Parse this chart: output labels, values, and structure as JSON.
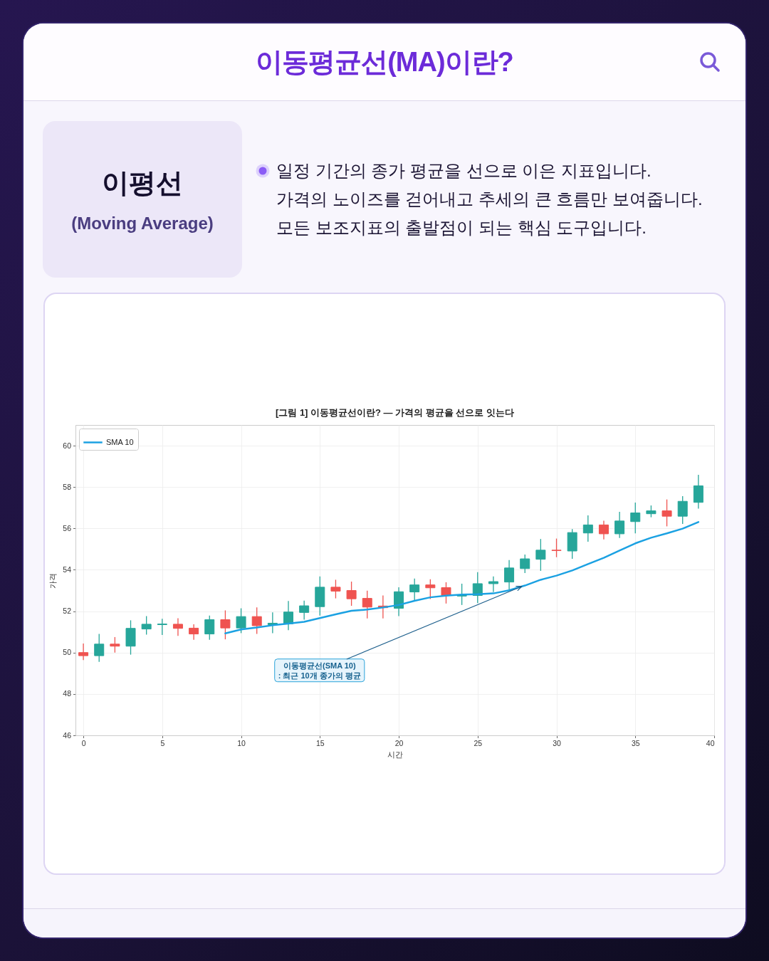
{
  "chart_data": {
    "type": "candlestick",
    "title": "이동평균선(MA)이란?",
    "subtitle": "[그림 1] 이동평균선이란? — 가격의 평균을 선으로 잇는다",
    "xlabel": "시간",
    "ylabel": "가격",
    "x": [
      0,
      1,
      2,
      3,
      4,
      5,
      6,
      7,
      8,
      9,
      10,
      11,
      12,
      13,
      14,
      15,
      16,
      17,
      18,
      19,
      20,
      21,
      22,
      23,
      24,
      25,
      26,
      27,
      28,
      29,
      30,
      31,
      32,
      33,
      34,
      35,
      36,
      37,
      38,
      39
    ],
    "ohlc": [
      [
        50.0,
        50.44,
        49.64,
        49.85
      ],
      [
        49.85,
        50.9,
        49.55,
        50.41
      ],
      [
        50.41,
        50.75,
        50.0,
        50.31
      ],
      [
        50.31,
        51.56,
        49.9,
        51.17
      ],
      [
        51.14,
        51.76,
        50.87,
        51.37
      ],
      [
        51.35,
        51.63,
        50.85,
        51.38
      ],
      [
        51.37,
        51.66,
        50.81,
        51.17
      ],
      [
        51.18,
        51.37,
        50.62,
        50.9
      ],
      [
        50.9,
        51.79,
        50.62,
        51.59
      ],
      [
        51.59,
        52.04,
        50.64,
        51.19
      ],
      [
        51.19,
        52.14,
        50.94,
        51.74
      ],
      [
        51.74,
        52.18,
        50.9,
        51.3
      ],
      [
        51.35,
        51.94,
        50.94,
        51.42
      ],
      [
        51.39,
        52.49,
        51.08,
        51.96
      ],
      [
        51.94,
        52.51,
        51.59,
        52.26
      ],
      [
        52.22,
        53.68,
        51.79,
        53.16
      ],
      [
        53.16,
        53.52,
        52.62,
        52.97
      ],
      [
        53.0,
        53.43,
        52.26,
        52.6
      ],
      [
        52.62,
        52.99,
        51.65,
        52.2
      ],
      [
        52.25,
        52.76,
        51.65,
        52.17
      ],
      [
        52.14,
        53.16,
        51.76,
        52.94
      ],
      [
        52.93,
        53.58,
        52.51,
        53.27
      ],
      [
        53.27,
        53.54,
        52.59,
        53.13
      ],
      [
        53.14,
        53.4,
        52.37,
        52.76
      ],
      [
        52.73,
        53.33,
        52.3,
        52.78
      ],
      [
        52.76,
        53.89,
        52.39,
        53.33
      ],
      [
        53.33,
        53.68,
        52.92,
        53.43
      ],
      [
        53.41,
        54.47,
        53.03,
        54.09
      ],
      [
        54.06,
        54.74,
        53.84,
        54.53
      ],
      [
        54.51,
        55.49,
        53.95,
        54.95
      ],
      [
        54.95,
        55.51,
        54.61,
        54.93
      ],
      [
        54.91,
        55.97,
        54.53,
        55.8
      ],
      [
        55.78,
        56.63,
        55.36,
        56.17
      ],
      [
        56.17,
        56.37,
        55.47,
        55.74
      ],
      [
        55.74,
        56.8,
        55.54,
        56.36
      ],
      [
        56.33,
        57.25,
        55.76,
        56.75
      ],
      [
        56.71,
        57.11,
        56.54,
        56.85
      ],
      [
        56.85,
        57.4,
        56.1,
        56.59
      ],
      [
        56.59,
        57.56,
        56.22,
        57.31
      ],
      [
        57.26,
        58.59,
        56.96,
        58.06
      ]
    ],
    "colors": [
      "#ef5350",
      "#26a69a",
      "#ef5350",
      "#26a69a",
      "#26a69a",
      "#26a69a",
      "#ef5350",
      "#ef5350",
      "#26a69a",
      "#ef5350",
      "#26a69a",
      "#ef5350",
      "#26a69a",
      "#26a69a",
      "#26a69a",
      "#26a69a",
      "#ef5350",
      "#ef5350",
      "#ef5350",
      "#ef5350",
      "#26a69a",
      "#26a69a",
      "#ef5350",
      "#ef5350",
      "#26a69a",
      "#26a69a",
      "#26a69a",
      "#26a69a",
      "#26a69a",
      "#26a69a",
      "#ef5350",
      "#26a69a",
      "#26a69a",
      "#ef5350",
      "#26a69a",
      "#26a69a",
      "#26a69a",
      "#ef5350",
      "#26a69a",
      "#26a69a"
    ],
    "series": [
      {
        "name": "SMA 10",
        "type": "line",
        "color": "#1ba1e2",
        "x": [
          9,
          10,
          11,
          12,
          13,
          14,
          15,
          16,
          17,
          18,
          19,
          20,
          21,
          22,
          23,
          24,
          25,
          26,
          27,
          28,
          29,
          30,
          31,
          32,
          33,
          34,
          35,
          36,
          37,
          38,
          39
        ],
        "values": [
          50.93,
          51.12,
          51.21,
          51.32,
          51.4,
          51.49,
          51.67,
          51.85,
          52.02,
          52.08,
          52.18,
          52.3,
          52.5,
          52.67,
          52.75,
          52.8,
          52.82,
          52.86,
          53.01,
          53.24,
          53.52,
          53.72,
          53.97,
          54.28,
          54.58,
          54.93,
          55.28,
          55.55,
          55.76,
          55.99,
          56.31
        ]
      }
    ],
    "xlim": [
      -0.5,
      40
    ],
    "ylim": [
      46,
      61
    ],
    "xticks": [
      0,
      5,
      10,
      15,
      20,
      25,
      30,
      35,
      40
    ],
    "yticks": [
      46,
      48,
      50,
      52,
      54,
      56,
      58,
      60
    ],
    "grid": true,
    "legend": "top left",
    "annotations": [
      "이평선",
      "(Moving Average)",
      "일정 기간의 종가 평균을 선으로 이은 지표입니다.",
      "가격의 노이즈를 걷어내고 추세의 큰 흐름만 보여줍니다.",
      "모든 보조지표의 출발점이 되는 핵심 도구입니다.",
      {
        "text": "이동평균선(SMA 10)\n: 최근 10개 종가의 평균",
        "x": 27.8,
        "y": 53.2
      }
    ]
  }
}
